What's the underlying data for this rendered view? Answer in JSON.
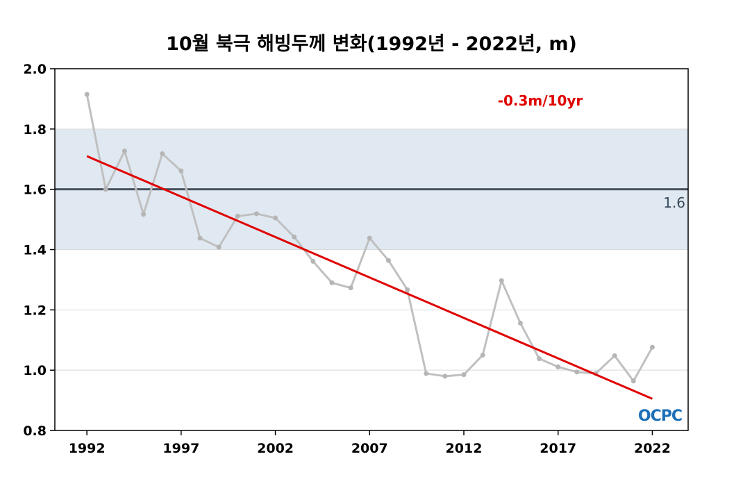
{
  "chart_data": {
    "type": "line",
    "title": "10월 북극 해빙두께 변화(1992년 - 2022년, m)",
    "xlabel": "",
    "ylabel": "",
    "xlim": [
      1990.3,
      2023.9
    ],
    "ylim": [
      0.8,
      2.0
    ],
    "x_ticks": [
      "1992",
      "1997",
      "2002",
      "2007",
      "2012",
      "2017",
      "2022"
    ],
    "y_ticks": [
      "2.0",
      "1.8",
      "1.6",
      "1.4",
      "1.2",
      "1.0",
      "0.8"
    ],
    "grid": true,
    "legend": "none",
    "band": {
      "from": 1.4,
      "to": 1.8,
      "color": "#e0e9f2"
    },
    "reference_line": {
      "value": 1.6,
      "label": "1.6",
      "color": "#47505c"
    },
    "series": [
      {
        "color": "#c0c0c0",
        "x": [
          1992,
          1993,
          1994,
          1995,
          1996,
          1997,
          1998,
          1999,
          2000,
          2001,
          2002,
          2003,
          2004,
          2005,
          2006,
          2007,
          2008,
          2009,
          2010,
          2011,
          2012,
          2013,
          2014,
          2015,
          2016,
          2017,
          2018,
          2019,
          2020,
          2021,
          2022
        ],
        "values": [
          1.915,
          1.6,
          1.727,
          1.517,
          1.718,
          1.661,
          1.438,
          1.408,
          1.511,
          1.519,
          1.505,
          1.442,
          1.361,
          1.29,
          1.273,
          1.438,
          1.364,
          1.267,
          0.989,
          0.98,
          0.985,
          1.05,
          1.297,
          1.156,
          1.038,
          1.011,
          0.994,
          0.989,
          1.048,
          0.964,
          1.076
        ]
      }
    ],
    "trend": {
      "color": "#e00000",
      "x": [
        1992,
        2022
      ],
      "values": [
        1.71,
        0.905
      ],
      "annotation": "-0.3m/10yr"
    },
    "logo_text": "OCPC"
  }
}
